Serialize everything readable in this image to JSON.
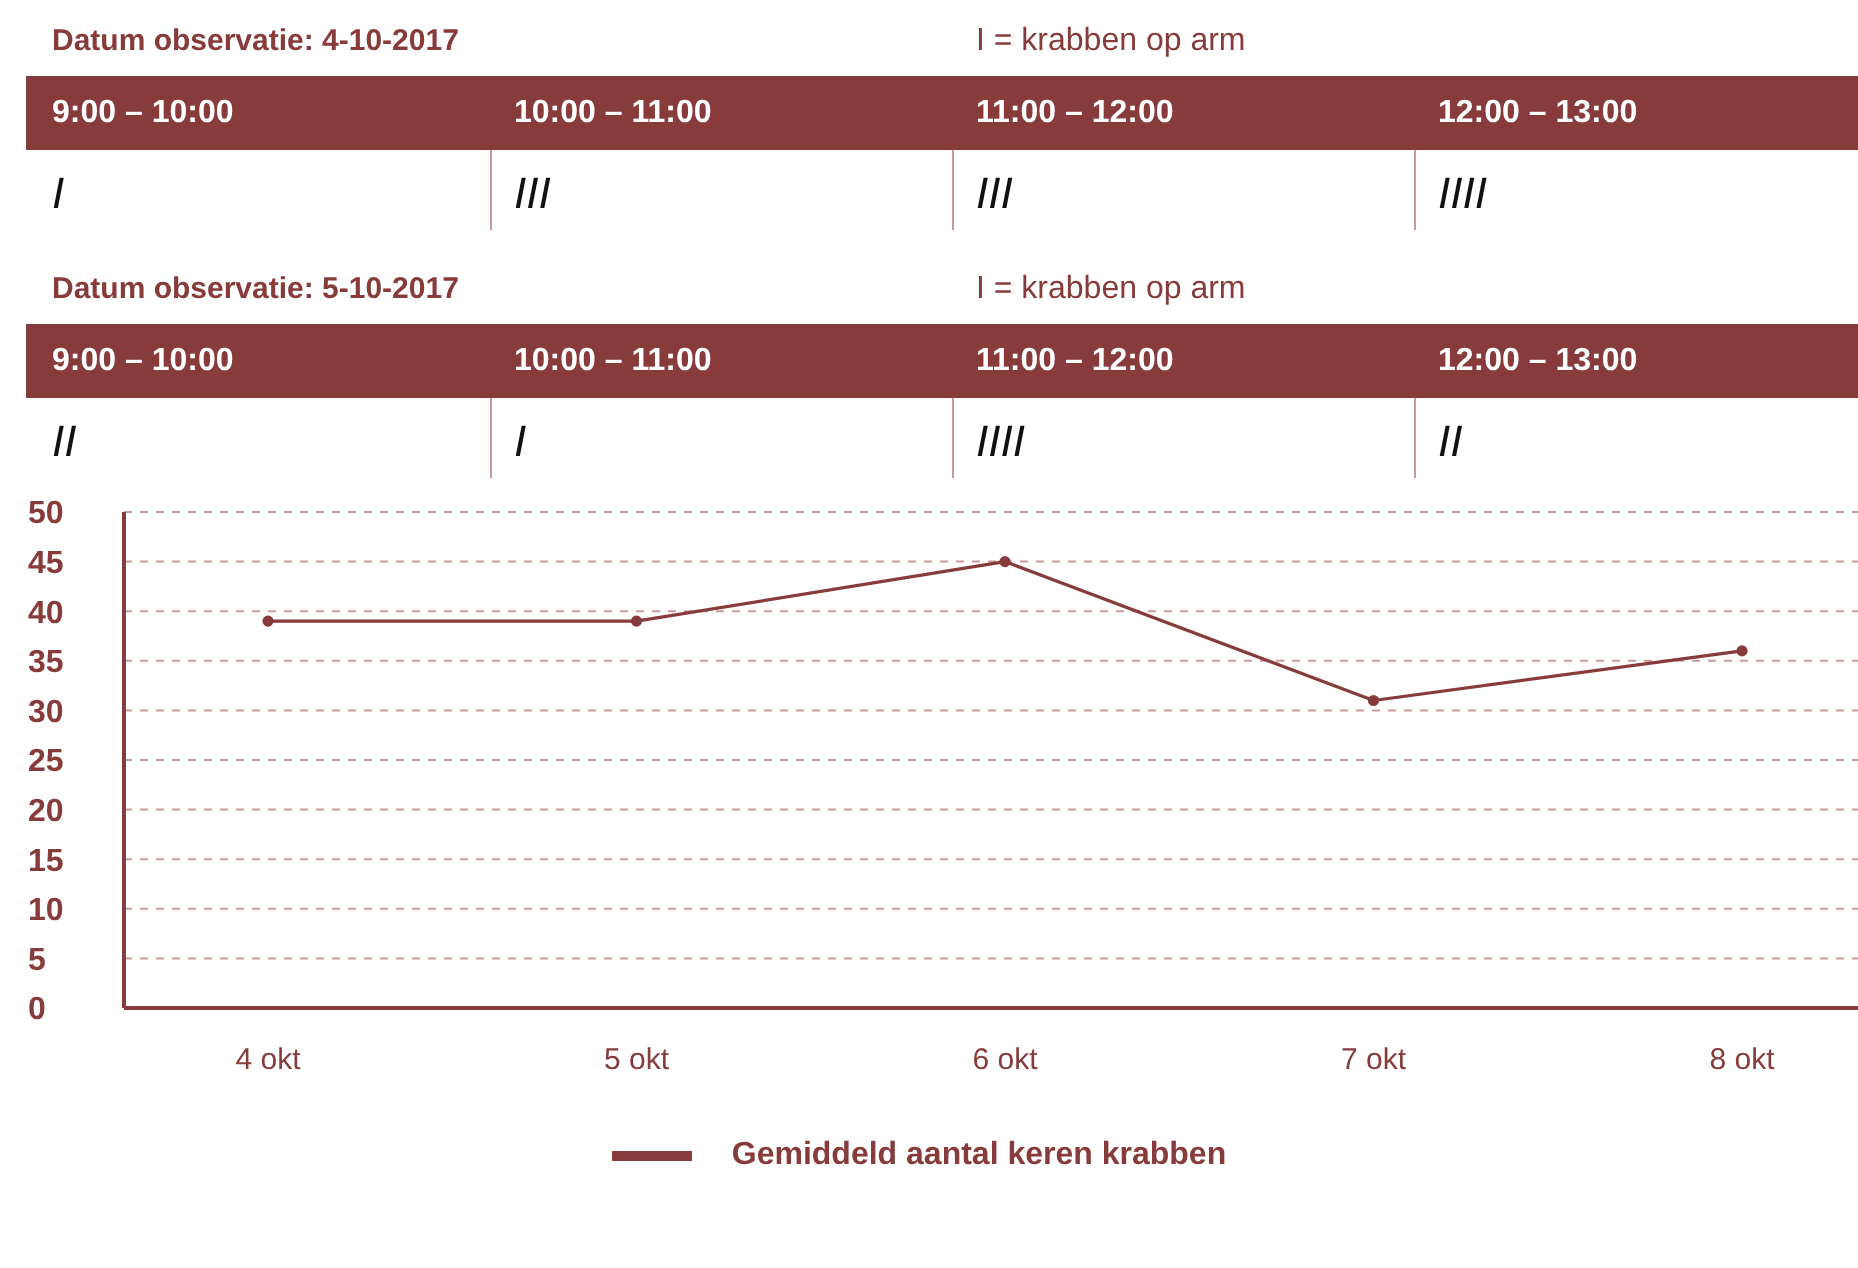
{
  "chart_data": [
    {
      "type": "other",
      "title": "Datum observatie: 4-10-2017",
      "annotations": [
        "I = krabben op arm"
      ],
      "categories": [
        "9:00 – 10:00",
        "10:00 – 11:00",
        "11:00 – 12:00",
        "12:00 – 13:00"
      ],
      "value_labels": [
        "I",
        "III",
        "III",
        "IIII"
      ],
      "color": "#883b3b"
    },
    {
      "type": "other",
      "title": "Datum observatie: 5-10-2017",
      "annotations": [
        "I = krabben op arm"
      ],
      "categories": [
        "9:00 – 10:00",
        "10:00 – 11:00",
        "11:00 – 12:00",
        "12:00 – 13:00"
      ],
      "value_labels": [
        "II",
        "I",
        "IIII",
        "II"
      ],
      "color": "#883b3b"
    },
    {
      "type": "line",
      "categories": [
        "4 okt",
        "5 okt",
        "6 okt",
        "7 okt",
        "8 okt"
      ],
      "series": [
        {
          "name": "Gemiddeld aantal keren krabben",
          "color": "#883b3b",
          "values": [
            39,
            39,
            45,
            31,
            36
          ]
        }
      ],
      "ylim": [
        0,
        50
      ],
      "yticks": [
        0,
        5,
        10,
        15,
        20,
        25,
        30,
        35,
        40,
        45,
        50
      ],
      "grid": "y",
      "legend": "bottom",
      "marker": "circle"
    }
  ]
}
